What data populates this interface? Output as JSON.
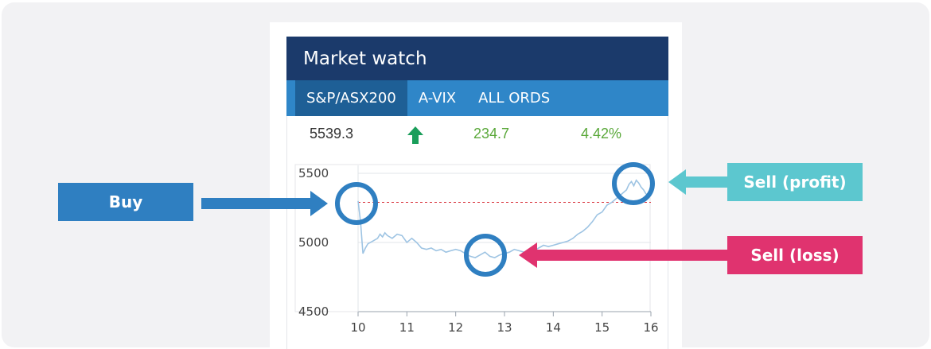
{
  "widget": {
    "title": "Market watch",
    "tabs": [
      {
        "label": "S&P/ASX200",
        "active": true
      },
      {
        "label": "A-VIX",
        "active": false
      },
      {
        "label": "ALL ORDS",
        "active": false
      }
    ],
    "quote": {
      "price": "5539.3",
      "direction": "up",
      "change": "234.7",
      "percent": "4.42%"
    }
  },
  "callouts": {
    "buy": "Buy",
    "sell_profit": "Sell (profit)",
    "sell_loss": "Sell (loss)"
  },
  "colors": {
    "header": "#1b3a6b",
    "tabs": "#2f86c8",
    "active_tab": "#1e5f96",
    "positive": "#5aa83a",
    "up_arrow": "#1a9e5a",
    "line": "#9ec4e3",
    "reference_line": "#d9303a",
    "marker": "#2f7fc1",
    "buy": "#2f7fc1",
    "sell_profit": "#5cc7cf",
    "sell_loss": "#e0336f"
  },
  "chart_data": {
    "type": "line",
    "title": "",
    "xlabel": "",
    "ylabel": "",
    "xlim": [
      10,
      16
    ],
    "ylim": [
      4500,
      5500
    ],
    "x_ticks": [
      10,
      11,
      12,
      13,
      14,
      15,
      16
    ],
    "y_ticks": [
      4500,
      5000,
      5500
    ],
    "grid": true,
    "reference_line": 5290,
    "series": [
      {
        "x": [
          10.0,
          10.05,
          10.1,
          10.15,
          10.2,
          10.3,
          10.4,
          10.45,
          10.5,
          10.55,
          10.6,
          10.7,
          10.8,
          10.9,
          11.0,
          11.1,
          11.2,
          11.3,
          11.4,
          11.5,
          11.6,
          11.7,
          11.8,
          11.9,
          12.0,
          12.1,
          12.2,
          12.3,
          12.4,
          12.5,
          12.6,
          12.7,
          12.8,
          12.9,
          13.0,
          13.1,
          13.2,
          13.3,
          13.4,
          13.5,
          13.6,
          13.7,
          13.8,
          13.9,
          14.0,
          14.1,
          14.2,
          14.3,
          14.4,
          14.5,
          14.6,
          14.7,
          14.8,
          14.9,
          15.0,
          15.1,
          15.2,
          15.3,
          15.4,
          15.5,
          15.55,
          15.6,
          15.65,
          15.7,
          15.75,
          15.8,
          15.85,
          15.9
        ],
        "y": [
          5300,
          5150,
          4920,
          4960,
          4990,
          5010,
          5030,
          5060,
          5040,
          5070,
          5050,
          5030,
          5060,
          5050,
          5000,
          5030,
          5000,
          4960,
          4950,
          4960,
          4940,
          4950,
          4930,
          4940,
          4950,
          4940,
          4920,
          4900,
          4890,
          4910,
          4930,
          4900,
          4890,
          4910,
          4920,
          4930,
          4950,
          4940,
          4930,
          4920,
          4940,
          4960,
          4980,
          4970,
          4980,
          4990,
          5000,
          5010,
          5030,
          5060,
          5080,
          5110,
          5150,
          5200,
          5220,
          5270,
          5290,
          5320,
          5350,
          5380,
          5420,
          5440,
          5410,
          5450,
          5430,
          5400,
          5380,
          5350
        ]
      }
    ],
    "annotations": [
      {
        "label": "Buy",
        "x": 10.1,
        "y": 5300
      },
      {
        "label": "Sell (loss)",
        "x": 12.6,
        "y": 4900
      },
      {
        "label": "Sell (profit)",
        "x": 15.7,
        "y": 5440
      }
    ]
  }
}
